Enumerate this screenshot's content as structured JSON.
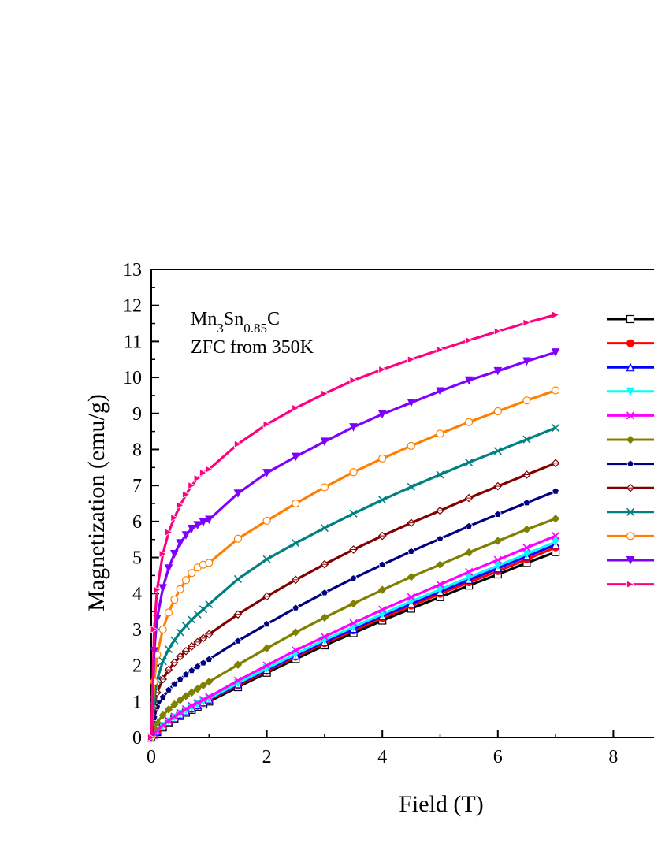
{
  "chart_data": {
    "type": "line",
    "xlabel": "Field (T)",
    "ylabel": "Magnetization (emu/g)",
    "xlim": [
      0,
      9
    ],
    "ylim": [
      0,
      13
    ],
    "xticks": [
      "0",
      "2",
      "4",
      "6",
      "8"
    ],
    "yticks": [
      "0",
      "1",
      "2",
      "3",
      "4",
      "5",
      "6",
      "7",
      "8",
      "9",
      "10",
      "11",
      "12",
      "13"
    ],
    "annotation": {
      "formula_base1": "Mn",
      "formula_sub1": "3",
      "formula_base2": "Sn",
      "formula_sub2": "0.85",
      "formula_base3": "C",
      "line2": "ZFC from 350K"
    },
    "legend_position": "right (cut off)",
    "x": [
      0,
      0.05,
      0.1,
      0.2,
      0.3,
      0.4,
      0.5,
      0.6,
      0.7,
      0.8,
      0.9,
      1.0,
      1.5,
      2.0,
      2.5,
      3.0,
      3.5,
      4.0,
      4.5,
      5.0,
      5.5,
      6.0,
      6.5,
      7.0
    ],
    "series": [
      {
        "color": "#000000",
        "marker": "square",
        "values": [
          0,
          0.08,
          0.15,
          0.28,
          0.4,
          0.51,
          0.6,
          0.69,
          0.77,
          0.85,
          0.92,
          1.0,
          1.4,
          1.8,
          2.18,
          2.56,
          2.9,
          3.25,
          3.58,
          3.9,
          4.22,
          4.53,
          4.85,
          5.15
        ]
      },
      {
        "color": "#ff0000",
        "marker": "circle-filled",
        "values": [
          0,
          0.09,
          0.16,
          0.3,
          0.42,
          0.53,
          0.63,
          0.72,
          0.8,
          0.88,
          0.96,
          1.04,
          1.45,
          1.85,
          2.24,
          2.62,
          2.97,
          3.32,
          3.66,
          3.99,
          4.31,
          4.62,
          4.95,
          5.28
        ]
      },
      {
        "color": "#0000ff",
        "marker": "triangle-up",
        "values": [
          0,
          0.09,
          0.17,
          0.31,
          0.43,
          0.54,
          0.64,
          0.73,
          0.82,
          0.9,
          0.98,
          1.06,
          1.48,
          1.88,
          2.28,
          2.66,
          3.02,
          3.38,
          3.72,
          4.05,
          4.38,
          4.7,
          5.03,
          5.36
        ]
      },
      {
        "color": "#00ffff",
        "marker": "triangle-down",
        "values": [
          0,
          0.1,
          0.18,
          0.32,
          0.45,
          0.56,
          0.66,
          0.75,
          0.84,
          0.92,
          1.0,
          1.08,
          1.51,
          1.92,
          2.32,
          2.71,
          3.07,
          3.43,
          3.78,
          4.11,
          4.45,
          4.77,
          5.1,
          5.43
        ]
      },
      {
        "color": "#ff00ff",
        "marker": "x-cross",
        "values": [
          0,
          0.1,
          0.19,
          0.34,
          0.47,
          0.58,
          0.69,
          0.79,
          0.88,
          0.96,
          1.05,
          1.13,
          1.58,
          2.0,
          2.42,
          2.8,
          3.18,
          3.55,
          3.9,
          4.25,
          4.6,
          4.93,
          5.27,
          5.6
        ]
      },
      {
        "color": "#808000",
        "marker": "diamond",
        "values": [
          0,
          0.25,
          0.42,
          0.62,
          0.78,
          0.92,
          1.04,
          1.15,
          1.25,
          1.35,
          1.45,
          1.55,
          2.02,
          2.48,
          2.92,
          3.33,
          3.72,
          4.1,
          4.46,
          4.8,
          5.14,
          5.46,
          5.78,
          6.08
        ]
      },
      {
        "color": "#000080",
        "marker": "pentagon",
        "values": [
          0,
          0.55,
          0.85,
          1.12,
          1.32,
          1.48,
          1.62,
          1.75,
          1.86,
          1.97,
          2.07,
          2.17,
          2.68,
          3.15,
          3.6,
          4.02,
          4.42,
          4.8,
          5.17,
          5.52,
          5.87,
          6.2,
          6.52,
          6.84
        ]
      },
      {
        "color": "#800000",
        "marker": "diamond-cross",
        "values": [
          0,
          0.85,
          1.25,
          1.62,
          1.88,
          2.08,
          2.25,
          2.4,
          2.53,
          2.65,
          2.76,
          2.87,
          3.42,
          3.92,
          4.38,
          4.81,
          5.22,
          5.6,
          5.96,
          6.3,
          6.65,
          6.98,
          7.3,
          7.62
        ]
      },
      {
        "color": "#008080",
        "marker": "x-cross",
        "values": [
          0,
          1.05,
          1.6,
          2.12,
          2.45,
          2.7,
          2.92,
          3.1,
          3.27,
          3.42,
          3.56,
          3.7,
          4.4,
          4.95,
          5.4,
          5.82,
          6.22,
          6.6,
          6.96,
          7.3,
          7.64,
          7.96,
          8.28,
          8.6
        ]
      },
      {
        "color": "#ff8000",
        "marker": "circle-open",
        "values": [
          0,
          1.55,
          2.3,
          3.0,
          3.47,
          3.83,
          4.12,
          4.37,
          4.57,
          4.72,
          4.8,
          4.85,
          5.52,
          6.02,
          6.5,
          6.95,
          7.37,
          7.75,
          8.1,
          8.44,
          8.76,
          9.06,
          9.36,
          9.64
        ]
      },
      {
        "color": "#8000ff",
        "marker": "triangle-down",
        "values": [
          0,
          2.4,
          3.3,
          4.15,
          4.7,
          5.1,
          5.4,
          5.62,
          5.8,
          5.9,
          5.98,
          6.05,
          6.78,
          7.35,
          7.8,
          8.22,
          8.62,
          8.98,
          9.3,
          9.62,
          9.92,
          10.18,
          10.45,
          10.7
        ]
      },
      {
        "color": "#ff0080",
        "marker": "triangle-right",
        "values": [
          0,
          3.0,
          4.1,
          5.1,
          5.7,
          6.1,
          6.45,
          6.75,
          7.0,
          7.2,
          7.35,
          7.45,
          8.15,
          8.7,
          9.15,
          9.55,
          9.92,
          10.22,
          10.5,
          10.77,
          11.03,
          11.28,
          11.52,
          11.74
        ]
      }
    ]
  }
}
